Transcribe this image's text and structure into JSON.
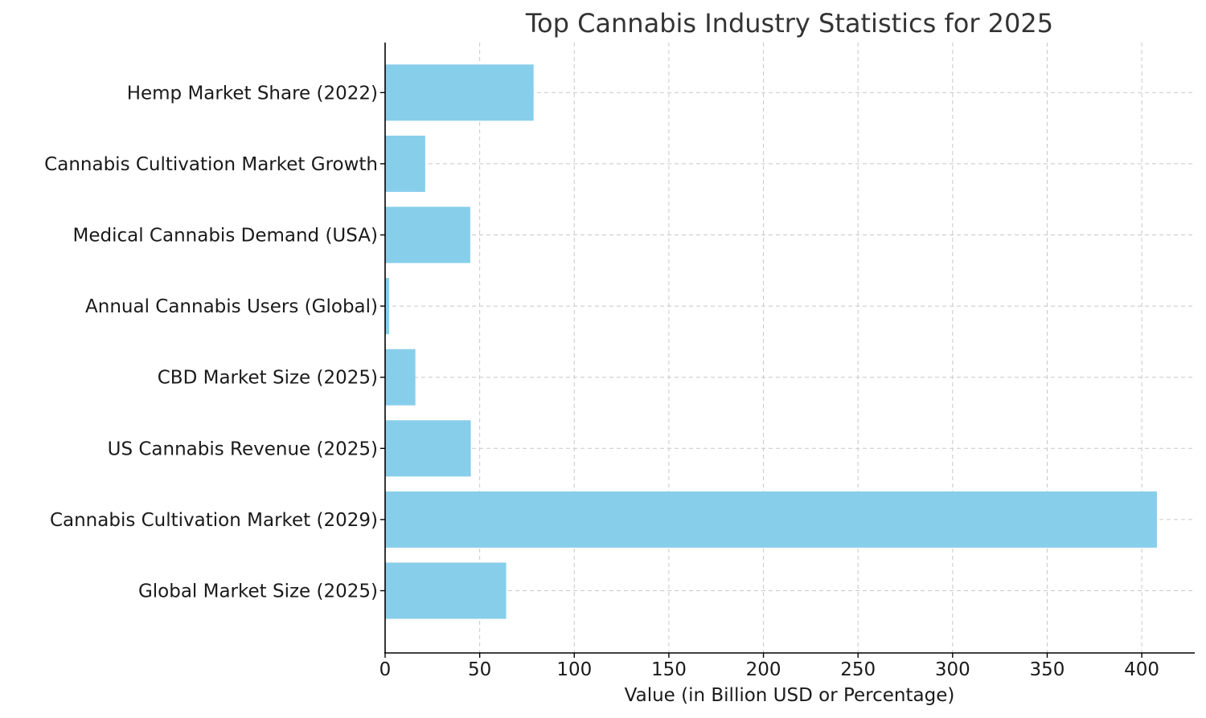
{
  "chart_data": {
    "type": "bar",
    "orientation": "horizontal",
    "title": "Top Cannabis Industry Statistics for 2025",
    "xlabel": "Value (in Billion USD or Percentage)",
    "ylabel": "",
    "categories": [
      "Global Market Size (2025)",
      "Cannabis Cultivation Market (2029)",
      "US Cannabis Revenue (2025)",
      "CBD Market Size (2025)",
      "Annual Cannabis Users (Global)",
      "Medical Cannabis Demand (USA)",
      "Cannabis Cultivation Market Growth",
      "Hemp Market Share (2022)"
    ],
    "values": [
      64,
      408,
      45.3,
      16,
      2.1,
      45,
      21.2,
      78.5
    ],
    "xlim": [
      0,
      428
    ],
    "xticks": [
      0,
      50,
      100,
      150,
      200,
      250,
      300,
      350,
      400
    ],
    "grid": true,
    "bar_color": "#87CEEB"
  }
}
